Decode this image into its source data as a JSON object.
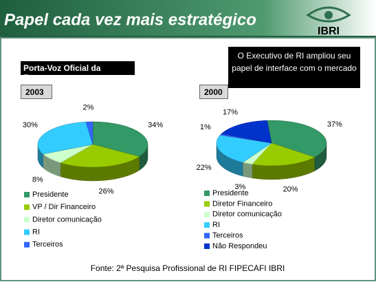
{
  "header": {
    "title": "Papel cada vez mais estratégico",
    "logo": "IBRI"
  },
  "subtitle": "Porta-Voz Oficial da Empresa",
  "callout": "O Executivo de RI ampliou seu papel de interface com o mercado",
  "source": "Fonte: 2ª Pesquisa Profissional de RI FIPECAFI IBRI",
  "chart_data": [
    {
      "type": "pie",
      "title": "2003",
      "categories": [
        "Presidente",
        "VP / Dir Financeiro",
        "Diretor comunicação",
        "RI",
        "Terceiros"
      ],
      "values": [
        34,
        26,
        8,
        30,
        2
      ],
      "value_labels": [
        "34%",
        "26%",
        "8%",
        "30%",
        "2%"
      ],
      "colors": [
        "#339966",
        "#99cc00",
        "#ccffcc",
        "#33ccff",
        "#3366ff"
      ]
    },
    {
      "type": "pie",
      "title": "2000",
      "categories": [
        "Presidente",
        "Diretor Financeiro",
        "Diretor comunicação",
        "RI",
        "Terceiros",
        "Não Respondeu"
      ],
      "values": [
        37,
        20,
        3,
        22,
        1,
        17
      ],
      "value_labels": [
        "37%",
        "20%",
        "3%",
        "22%",
        "1%",
        "17%"
      ],
      "colors": [
        "#339966",
        "#99cc00",
        "#ccffcc",
        "#33ccff",
        "#3366ff",
        "#0033cc"
      ]
    }
  ]
}
